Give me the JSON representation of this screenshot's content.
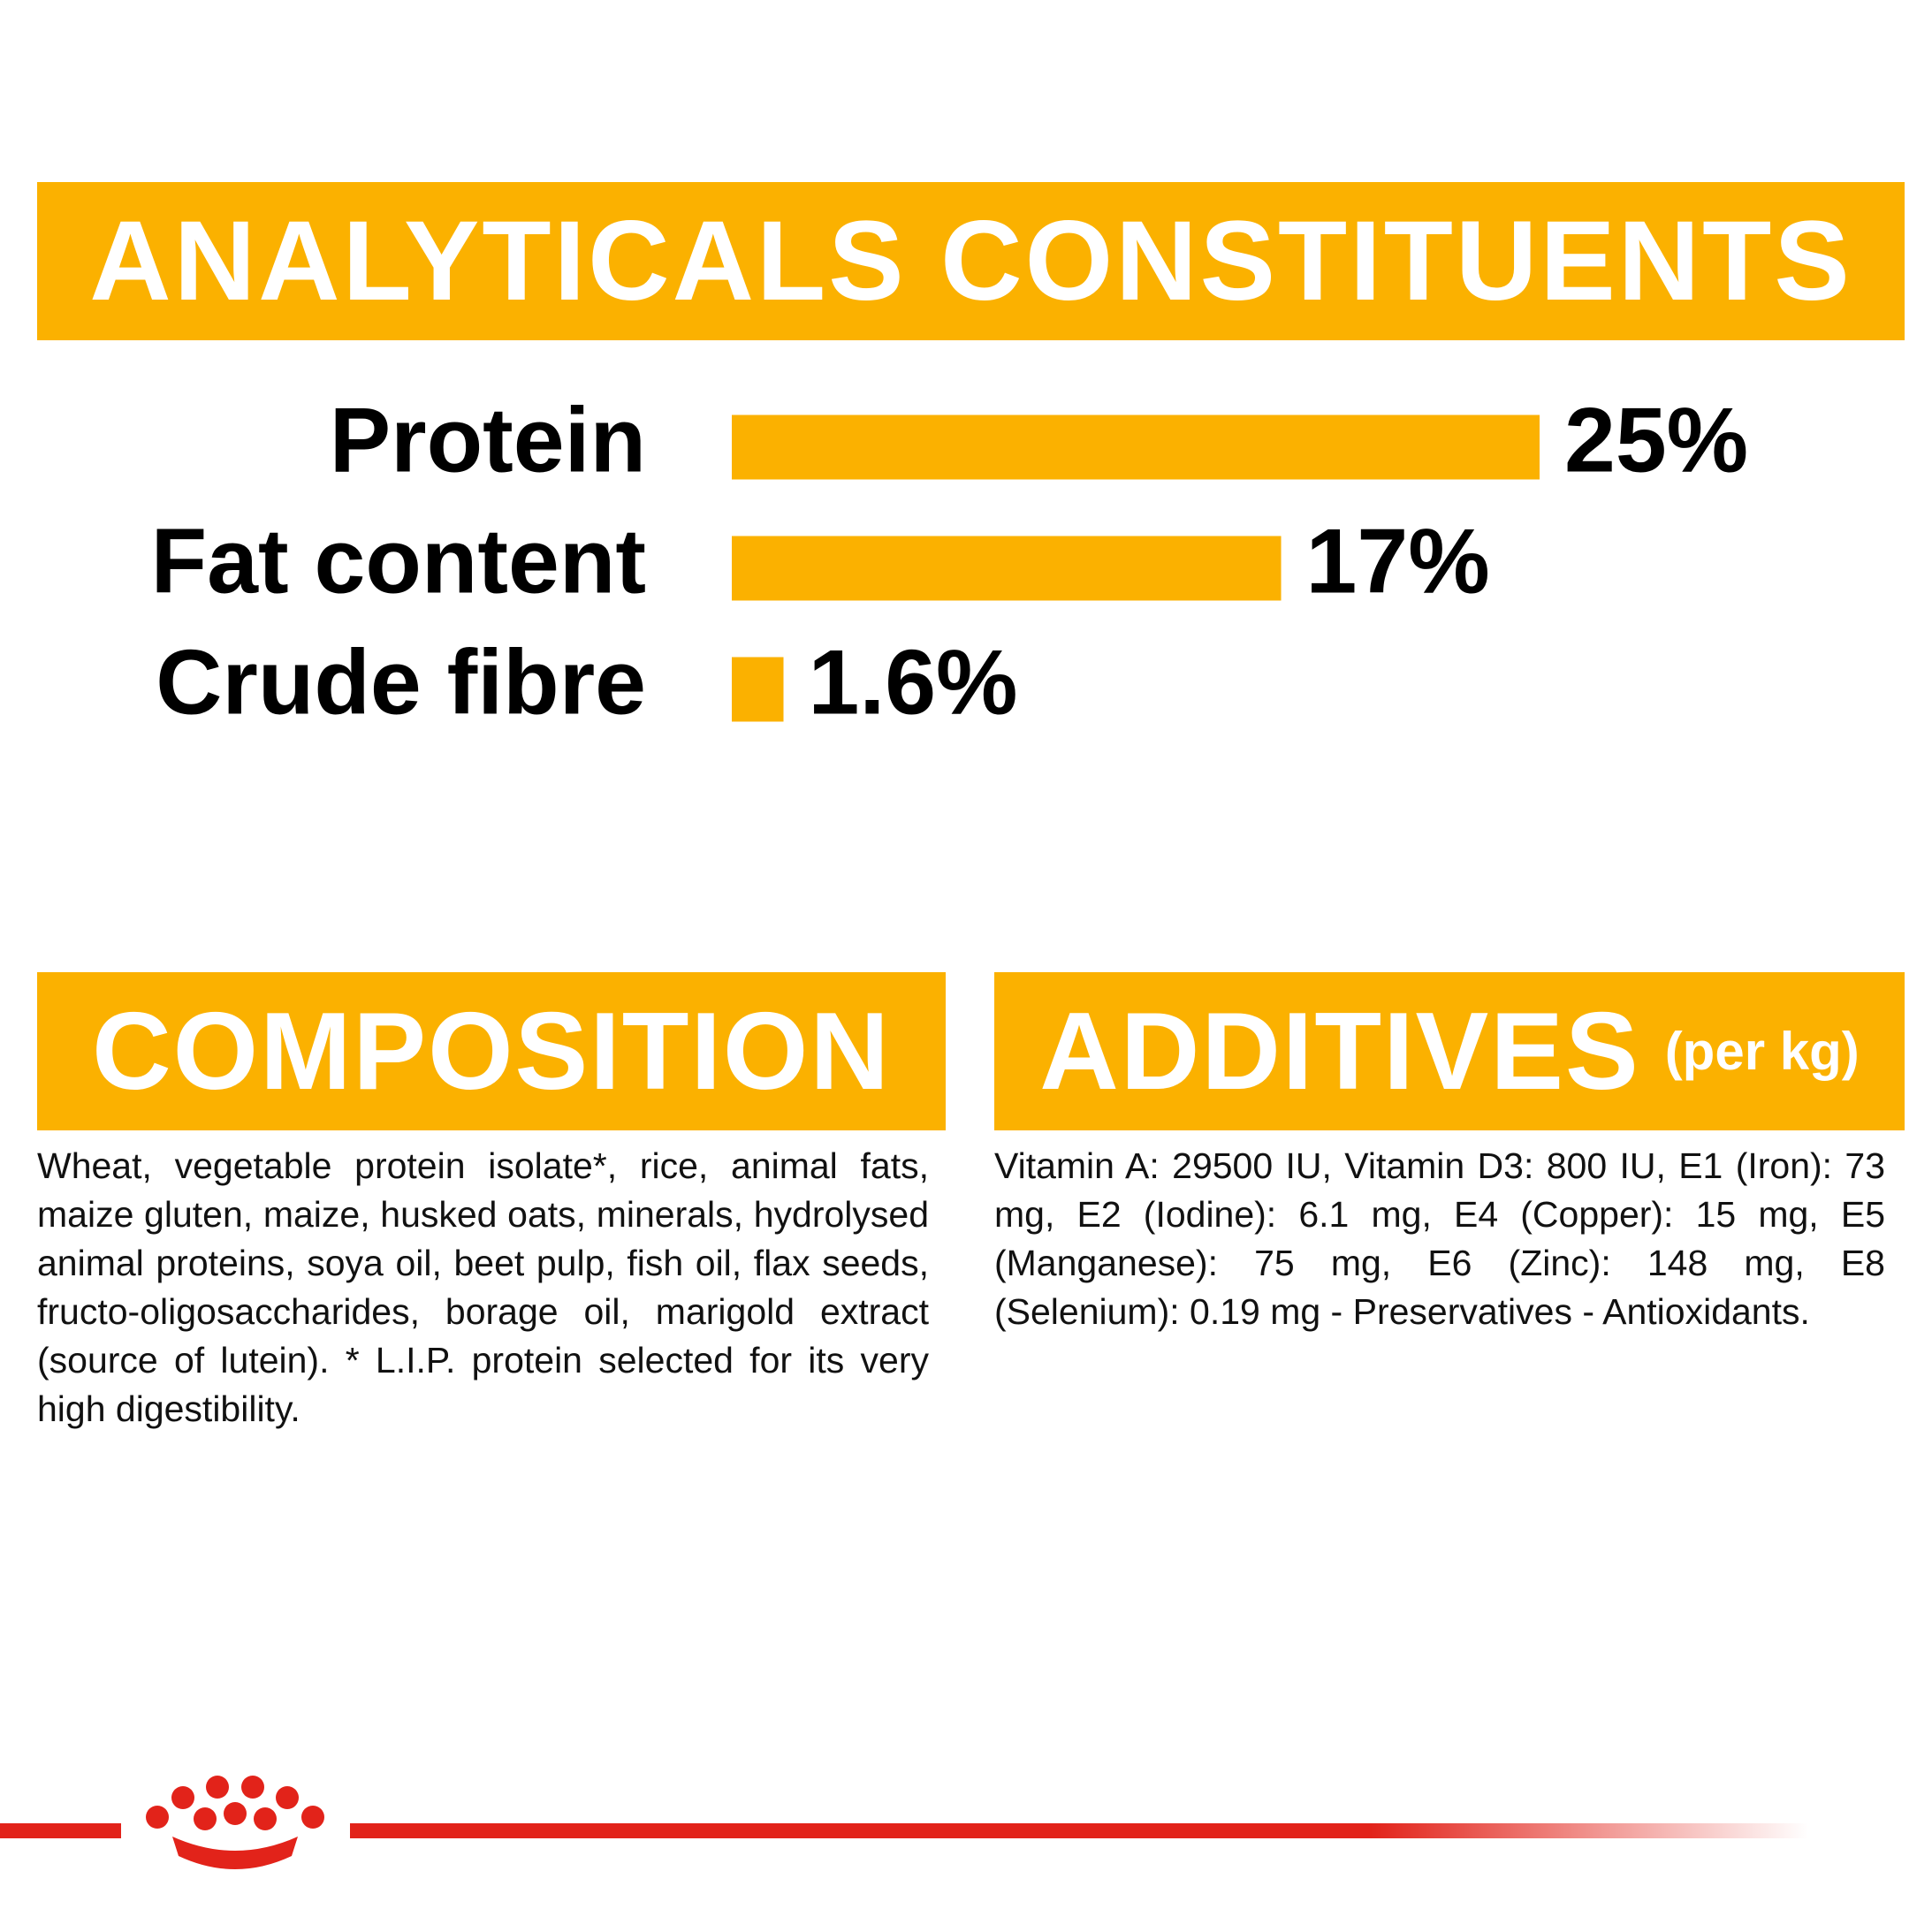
{
  "chart_data": {
    "type": "bar",
    "orientation": "horizontal",
    "title": "ANALYTICALS CONSTITUENTS",
    "categories": [
      "Protein",
      "Fat content",
      "Crude fibre"
    ],
    "values": [
      25,
      17,
      1.6
    ],
    "value_labels": [
      "25%",
      "17%",
      "1.6%"
    ],
    "color": "#fbb100"
  },
  "composition": {
    "title": "COMPOSITION",
    "text": "Wheat, vegetable protein isolate*, rice, animal fats, maize gluten, maize, husked oats, minerals, hydrolysed animal proteins, soya oil, beet pulp, fish oil, flax seeds, fructo-oligosaccharides, borage oil, marigold extract (source of lutein). * L.I.P. protein selected for its very high digestibility."
  },
  "additives": {
    "title": "ADDITIVES",
    "subtitle": "(per kg)",
    "text": "Vitamin A: 29500 IU, Vitamin D3: 800 IU, E1 (Iron): 73 mg, E2 (Iodine): 6.1 mg, E4 (Copper): 15 mg, E5 (Manganese): 75 mg, E6 (Zinc): 148 mg, E8 (Selenium): 0.19 mg - Preservatives - Antioxidants."
  }
}
